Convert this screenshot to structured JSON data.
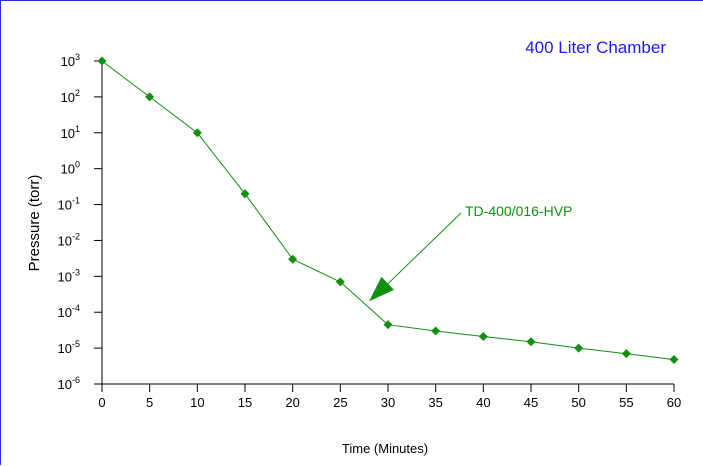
{
  "chart_data": {
    "type": "line",
    "title": "400 Liter Chamber",
    "xlabel": "Time (Minutes)",
    "ylabel": "Pressure (torr)",
    "x_scale": "linear",
    "y_scale": "log",
    "xlim": [
      0,
      60
    ],
    "ylim": [
      1e-06,
      1000
    ],
    "x_ticks": [
      0,
      5,
      10,
      15,
      20,
      25,
      30,
      35,
      40,
      45,
      50,
      55,
      60
    ],
    "y_tick_exponents": [
      -6,
      -5,
      -4,
      -3,
      -2,
      -1,
      0,
      1,
      2,
      3
    ],
    "y_tick_base": "10",
    "grid": false,
    "line_color": "#109010",
    "title_color": "#1a1aff",
    "series": [
      {
        "name": "TD-400/016-HVP",
        "x": [
          0,
          5,
          10,
          15,
          20,
          25,
          30,
          35,
          40,
          45,
          50,
          55,
          60
        ],
        "y": [
          1000,
          100,
          10,
          0.2,
          0.003,
          0.0007,
          4.5e-05,
          3e-05,
          2.1e-05,
          1.5e-05,
          1e-05,
          7e-06,
          4.8e-06
        ]
      }
    ],
    "annotations": [
      {
        "text": "TD-400/016-HVP",
        "points_to": {
          "x": 28,
          "y": 0.0002
        }
      }
    ]
  }
}
